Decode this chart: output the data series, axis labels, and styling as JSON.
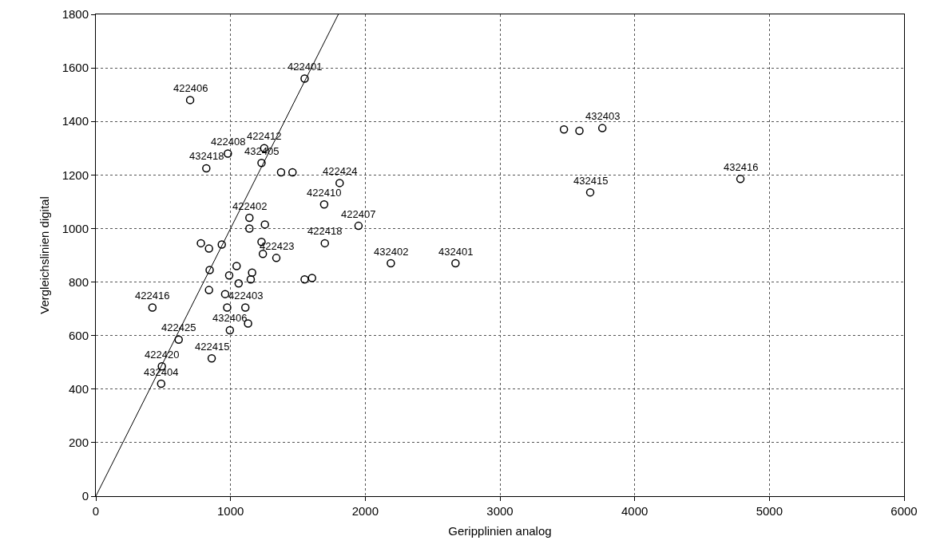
{
  "chart_data": {
    "type": "scatter",
    "xlabel": "Geripplinien analog",
    "ylabel": "Vergleichslinien digital",
    "xlim": [
      0,
      6000
    ],
    "xticks": [
      0,
      1000,
      2000,
      3000,
      4000,
      5000,
      6000
    ],
    "ylim": [
      0,
      1800
    ],
    "yticks": [
      0,
      200,
      400,
      600,
      800,
      1000,
      1200,
      1400,
      1600,
      1800
    ],
    "grid": true,
    "legend": false,
    "marker": "circle",
    "series": [
      {
        "color": "#000000",
        "x": [
          700,
          1550,
          820,
          980,
          1230,
          1250,
          1375,
          1460,
          1810,
          1695,
          1950,
          1140,
          1255,
          1140,
          1700,
          780,
          840,
          935,
          1230,
          1240,
          1340,
          1045,
          845,
          990,
          1160,
          1150,
          1060,
          1550,
          1605,
          840,
          960,
          975,
          1110,
          1130,
          995,
          420,
          615,
          860,
          490,
          485,
          2190,
          2670,
          3670,
          3475,
          3590,
          3760,
          4785
        ],
        "values": [
          1480,
          1560,
          1225,
          1280,
          1245,
          1300,
          1210,
          1210,
          1170,
          1090,
          1010,
          1040,
          1015,
          1000,
          945,
          945,
          925,
          940,
          950,
          905,
          890,
          860,
          845,
          825,
          835,
          810,
          795,
          810,
          815,
          770,
          755,
          705,
          705,
          645,
          620,
          705,
          585,
          515,
          485,
          420,
          870,
          870,
          1135,
          1370,
          1365,
          1375,
          1185
        ]
      },
      {
        "type": "line",
        "color": "#000000",
        "marker": "none",
        "x": [
          0,
          1800
        ],
        "values": [
          0,
          1800
        ]
      }
    ],
    "annotations": [
      {
        "text": "422406",
        "x": 700,
        "y": 1480
      },
      {
        "text": "422401",
        "x": 1550,
        "y": 1560
      },
      {
        "text": "432418",
        "x": 820,
        "y": 1225
      },
      {
        "text": "422408",
        "x": 980,
        "y": 1280
      },
      {
        "text": "432405",
        "x": 1230,
        "y": 1245
      },
      {
        "text": "422412",
        "x": 1250,
        "y": 1300
      },
      {
        "text": "422424",
        "x": 1810,
        "y": 1170
      },
      {
        "text": "422410",
        "x": 1695,
        "y": 1090
      },
      {
        "text": "422407",
        "x": 1950,
        "y": 1010
      },
      {
        "text": "422402",
        "x": 1140,
        "y": 1040
      },
      {
        "text": "422418",
        "x": 1700,
        "y": 945
      },
      {
        "text": "422423",
        "x": 1340,
        "y": 890
      },
      {
        "text": "422403",
        "x": 1110,
        "y": 705
      },
      {
        "text": "432406",
        "x": 995,
        "y": 620
      },
      {
        "text": "422416",
        "x": 420,
        "y": 705
      },
      {
        "text": "422425",
        "x": 615,
        "y": 585
      },
      {
        "text": "422415",
        "x": 860,
        "y": 515
      },
      {
        "text": "422420",
        "x": 490,
        "y": 485
      },
      {
        "text": "432404",
        "x": 485,
        "y": 420
      },
      {
        "text": "432402",
        "x": 2190,
        "y": 870
      },
      {
        "text": "432401",
        "x": 2670,
        "y": 870
      },
      {
        "text": "432415",
        "x": 3670,
        "y": 1135
      },
      {
        "text": "432403",
        "x": 3760,
        "y": 1375
      },
      {
        "text": "432416",
        "x": 4785,
        "y": 1185
      }
    ]
  }
}
